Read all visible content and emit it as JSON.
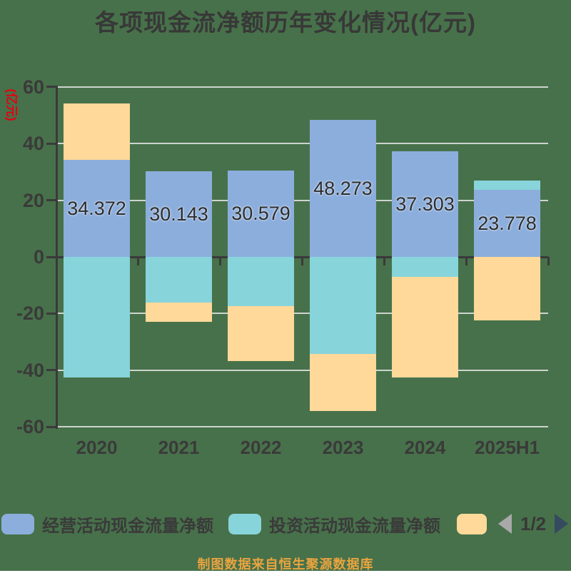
{
  "title": "各项现金流净额历年变化情况(亿元)",
  "y_axis_name": "(亿元)",
  "caption": "制图数据来自恒生聚源数据库",
  "legend": {
    "items": [
      {
        "label": "经营活动现金流量净额",
        "color": "#8CAEDC"
      },
      {
        "label": "投资活动现金流量净额",
        "color": "#87D4DA"
      },
      {
        "label": "",
        "color": "#FED999"
      }
    ],
    "pagination": {
      "current": "1/2"
    }
  },
  "chart_data": {
    "type": "bar",
    "stacked": true,
    "title": "各项现金流净额历年变化情况(亿元)",
    "ylabel": "(亿元)",
    "categories": [
      "2020",
      "2021",
      "2022",
      "2023",
      "2024",
      "2025H1"
    ],
    "series": [
      {
        "name": "经营活动现金流量净额",
        "color": "#8CAEDC",
        "values": [
          34.372,
          30.143,
          30.579,
          48.273,
          37.303,
          23.778
        ]
      },
      {
        "name": "投资活动现金流量净额",
        "color": "#87D4DA",
        "values": [
          -42.5,
          -16,
          -17.4,
          -34.3,
          -7,
          3.2
        ]
      },
      {
        "name": "",
        "color": "#FED999",
        "values": [
          19.8,
          -7,
          -19.3,
          -20,
          -35.5,
          -22.4
        ]
      }
    ],
    "value_labels": [
      "34.372",
      "30.143",
      "30.579",
      "48.273",
      "37.303",
      "23.778"
    ],
    "ylim": [
      -60,
      60
    ],
    "y_ticks": [
      60,
      40,
      20,
      0,
      -20,
      -40,
      -60
    ],
    "grid": true,
    "legend_position": "bottom"
  },
  "colors": {
    "background": "#47714A",
    "text": "#3A3A3A",
    "axis": "#3A3A3A",
    "grid": "#E5E5E5",
    "y_axis_name": "#E60012",
    "caption": "#E9A440",
    "pager_prev": "#A9A9A9",
    "pager_next": "#344A5F"
  }
}
